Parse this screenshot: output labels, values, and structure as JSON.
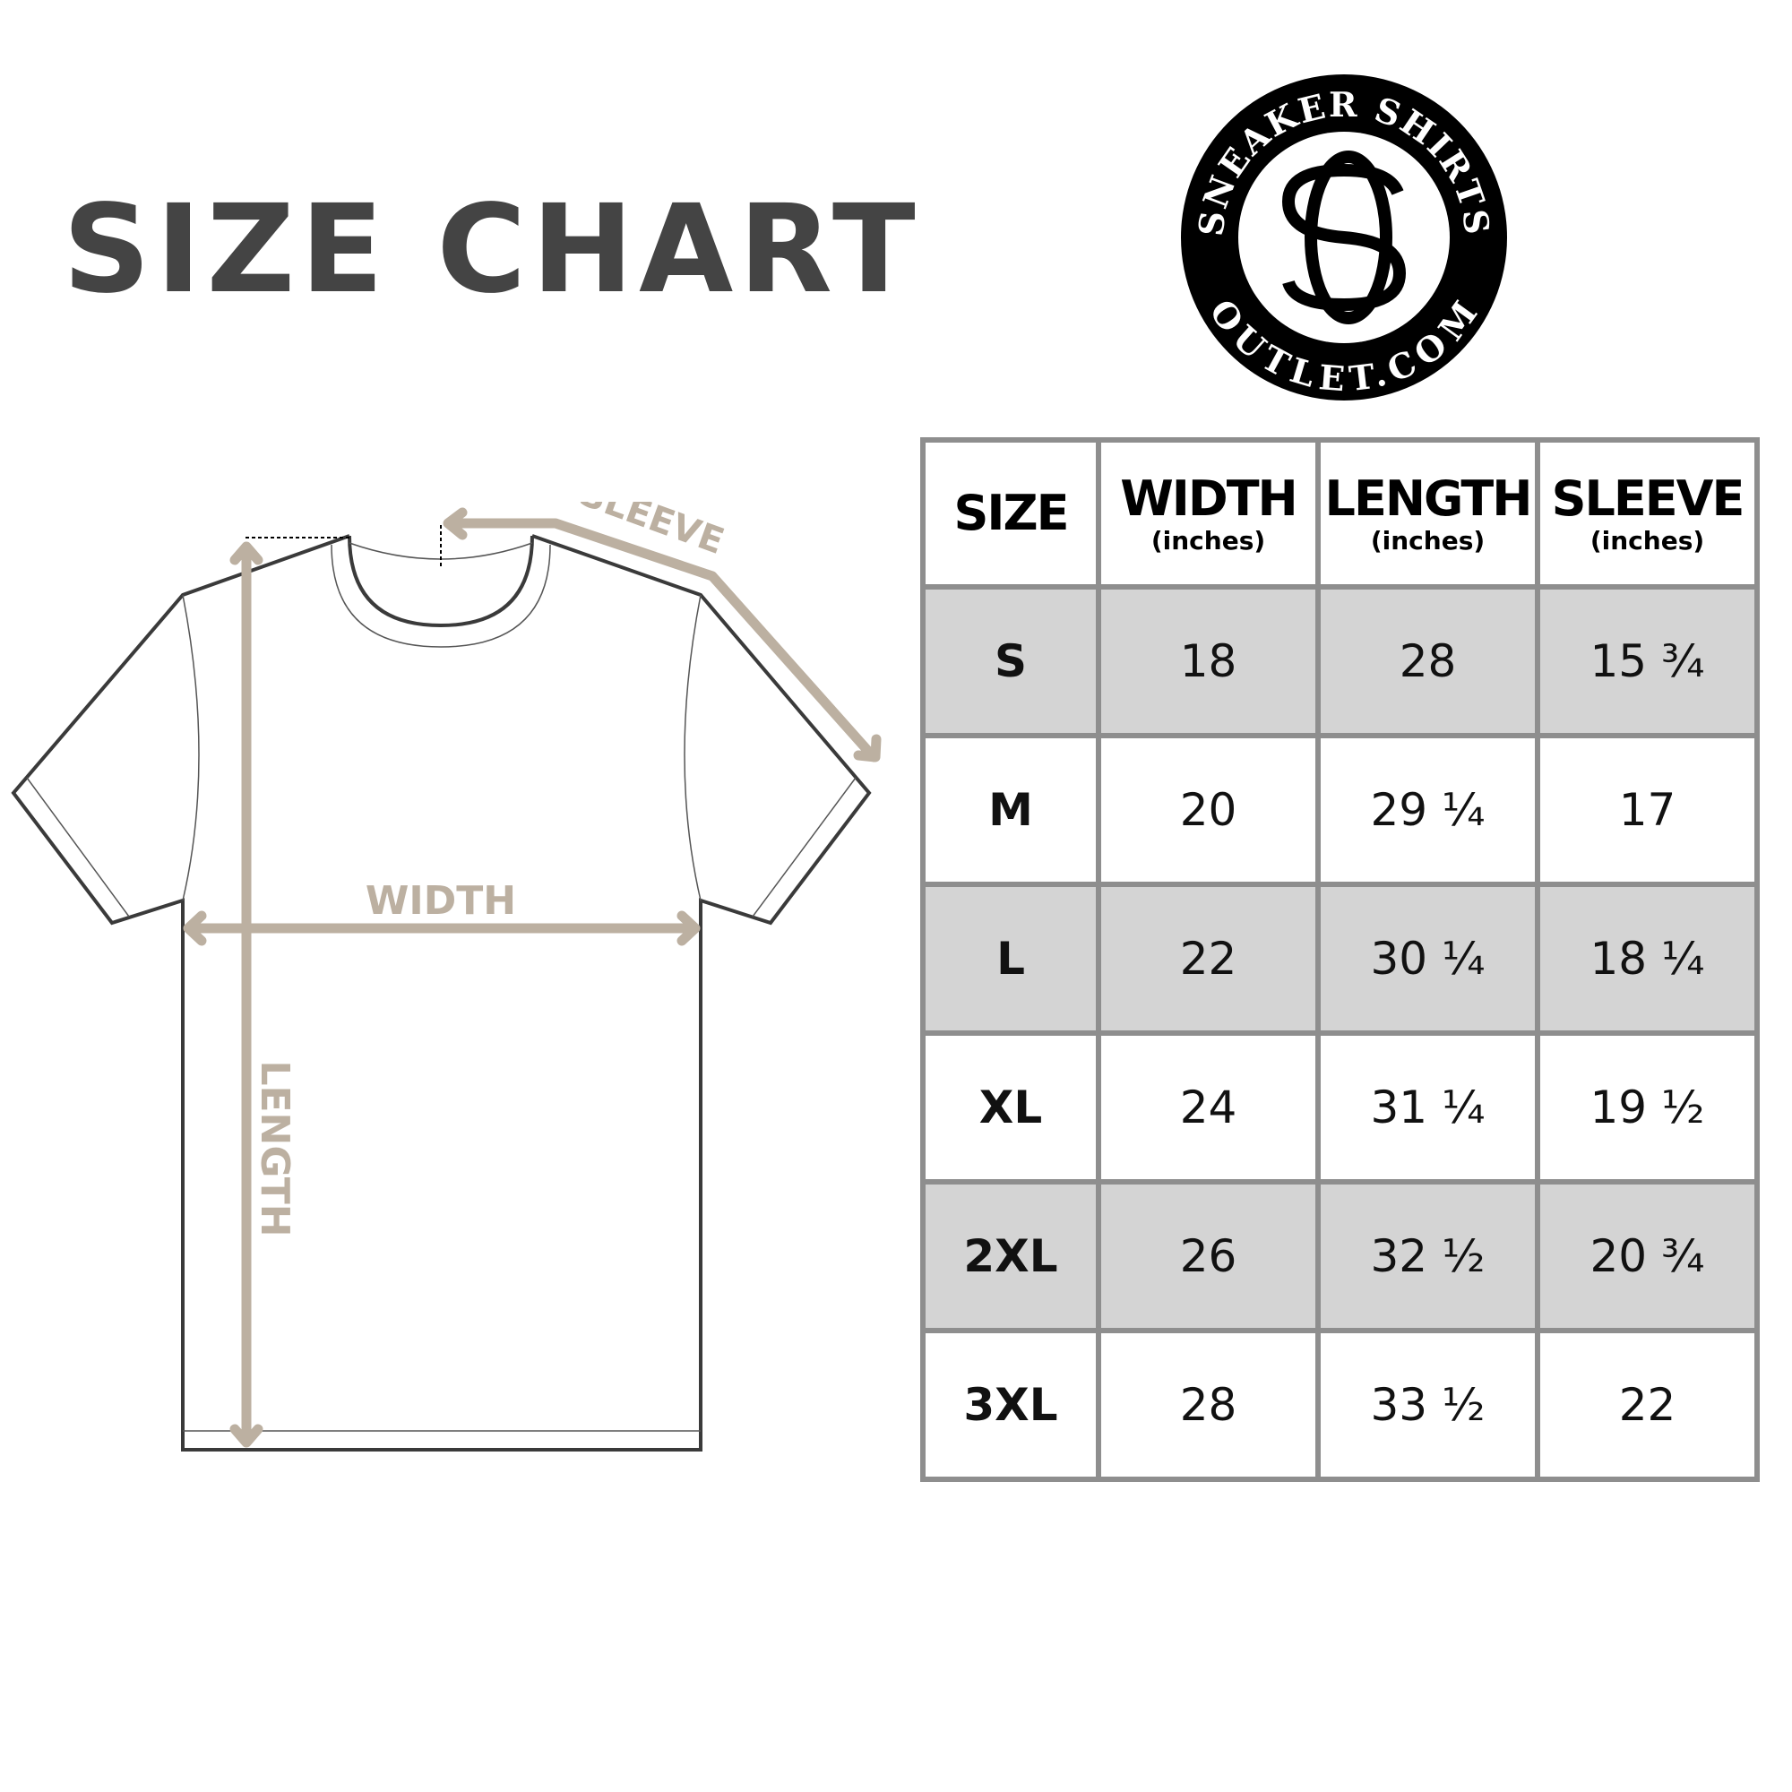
{
  "title": "SIZE CHART",
  "logo": {
    "top_text": "SNEAKER SHIRTS",
    "bottom_text": "OUTLET.COM",
    "monogram": "SO"
  },
  "diagram": {
    "sleeve_label": "SLEEVE",
    "width_label": "WIDTH",
    "length_label": "LENGTH",
    "accent_color": "#bcb0a1"
  },
  "table": {
    "headers": [
      {
        "main": "SIZE",
        "sub": ""
      },
      {
        "main": "WIDTH",
        "sub": "(inches)"
      },
      {
        "main": "LENGTH",
        "sub": "(inches)"
      },
      {
        "main": "SLEEVE",
        "sub": "(inches)"
      }
    ],
    "rows": [
      [
        "S",
        "18",
        "28",
        "15 ¾"
      ],
      [
        "M",
        "20",
        "29 ¼",
        "17"
      ],
      [
        "L",
        "22",
        "30 ¼",
        "18 ¼"
      ],
      [
        "XL",
        "24",
        "31 ¼",
        "19 ½"
      ],
      [
        "2XL",
        "26",
        "32 ½",
        "20 ¾"
      ],
      [
        "3XL",
        "28",
        "33 ½",
        "22"
      ]
    ],
    "shade_color": "#d4d4d4",
    "border_color": "#8e8e8e"
  }
}
